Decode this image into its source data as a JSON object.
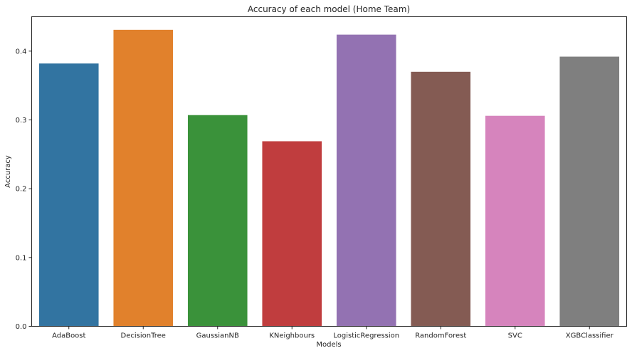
{
  "chart_data": {
    "type": "bar",
    "title": "Accuracy of each model (Home Team)",
    "xlabel": "Models",
    "ylabel": "Accuracy",
    "categories": [
      "AdaBoost",
      "DecisionTree",
      "GaussianNB",
      "KNeighbours",
      "LogisticRegression",
      "RandomForest",
      "SVC",
      "XGBClassifier"
    ],
    "values": [
      0.382,
      0.431,
      0.307,
      0.269,
      0.424,
      0.37,
      0.306,
      0.392
    ],
    "colors": [
      "#3274a1",
      "#e1812c",
      "#3a923a",
      "#c03d3e",
      "#9372b2",
      "#845b53",
      "#d684bd",
      "#7f7f7f"
    ],
    "ylim": [
      0,
      0.45
    ],
    "yticks": [
      "0.0",
      "0.1",
      "0.2",
      "0.3",
      "0.4"
    ],
    "grid": false,
    "legend": "none"
  }
}
